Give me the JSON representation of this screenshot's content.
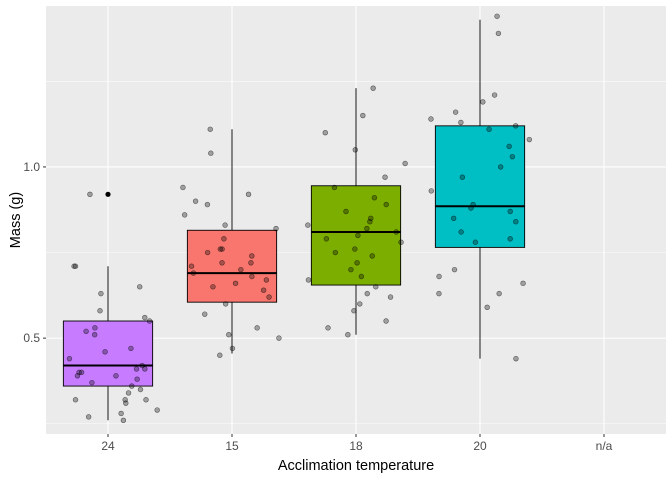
{
  "chart_data": {
    "type": "box",
    "title": "",
    "xlabel": "Acclimation temperature",
    "ylabel": "Mass (g)",
    "categories": [
      "24",
      "15",
      "18",
      "20",
      "n/a"
    ],
    "ylim": [
      0.22,
      1.47
    ],
    "yticks": [
      0.5,
      1.0
    ],
    "ytick_labels": [
      "0.5",
      "1.0"
    ],
    "grid": true,
    "legend": "none",
    "colors": {
      "panel_background": "#EBEBEB",
      "grid_major": "#FFFFFF",
      "point": "#000000",
      "box_outline": "#000000",
      "tick_text": "#4D4D4D",
      "tick_mark": "#333333"
    },
    "boxes": [
      {
        "category": "24",
        "fill": "#C77CFF",
        "q1": 0.36,
        "median": 0.42,
        "q3": 0.55,
        "whisker_low": 0.26,
        "whisker_high": 0.71,
        "outliers": [
          0.92
        ],
        "points": [
          0.26,
          0.27,
          0.28,
          0.29,
          0.31,
          0.32,
          0.32,
          0.32,
          0.34,
          0.35,
          0.36,
          0.37,
          0.38,
          0.39,
          0.39,
          0.4,
          0.4,
          0.41,
          0.41,
          0.42,
          0.44,
          0.46,
          0.47,
          0.51,
          0.52,
          0.53,
          0.55,
          0.56,
          0.58,
          0.63,
          0.65,
          0.71,
          0.71,
          0.92
        ]
      },
      {
        "category": "15",
        "fill": "#F8766D",
        "q1": 0.605,
        "median": 0.69,
        "q3": 0.815,
        "whisker_low": 0.455,
        "whisker_high": 1.11,
        "outliers": [],
        "points": [
          0.45,
          0.47,
          0.5,
          0.51,
          0.53,
          0.57,
          0.6,
          0.62,
          0.64,
          0.65,
          0.66,
          0.67,
          0.68,
          0.69,
          0.7,
          0.71,
          0.72,
          0.72,
          0.74,
          0.75,
          0.76,
          0.76,
          0.79,
          0.82,
          0.83,
          0.86,
          0.89,
          0.9,
          0.92,
          0.94,
          1.04,
          1.11
        ]
      },
      {
        "category": "18",
        "fill": "#7CAE00",
        "q1": 0.655,
        "median": 0.81,
        "q3": 0.945,
        "whisker_low": 0.51,
        "whisker_high": 1.23,
        "outliers": [],
        "points": [
          0.51,
          0.53,
          0.55,
          0.58,
          0.6,
          0.62,
          0.63,
          0.65,
          0.67,
          0.68,
          0.7,
          0.72,
          0.74,
          0.75,
          0.76,
          0.78,
          0.79,
          0.8,
          0.81,
          0.82,
          0.83,
          0.84,
          0.85,
          0.87,
          0.89,
          0.91,
          0.94,
          0.97,
          1.01,
          1.05,
          1.1,
          1.15,
          1.23
        ]
      },
      {
        "category": "20",
        "fill": "#00BFC4",
        "q1": 0.765,
        "median": 0.885,
        "q3": 1.12,
        "whisker_low": 0.44,
        "whisker_high": 1.43,
        "outliers": [],
        "points": [
          0.44,
          0.59,
          0.63,
          0.63,
          0.66,
          0.68,
          0.7,
          0.78,
          0.79,
          0.81,
          0.84,
          0.85,
          0.87,
          0.88,
          0.89,
          0.93,
          0.97,
          1.0,
          1.03,
          1.06,
          1.08,
          1.11,
          1.12,
          1.13,
          1.14,
          1.16,
          1.19,
          1.21,
          1.39,
          1.44
        ]
      },
      {
        "category": "n/a",
        "fill": "#999999",
        "q1": null,
        "median": null,
        "q3": null,
        "whisker_low": null,
        "whisker_high": null,
        "outliers": [],
        "points": []
      }
    ]
  }
}
